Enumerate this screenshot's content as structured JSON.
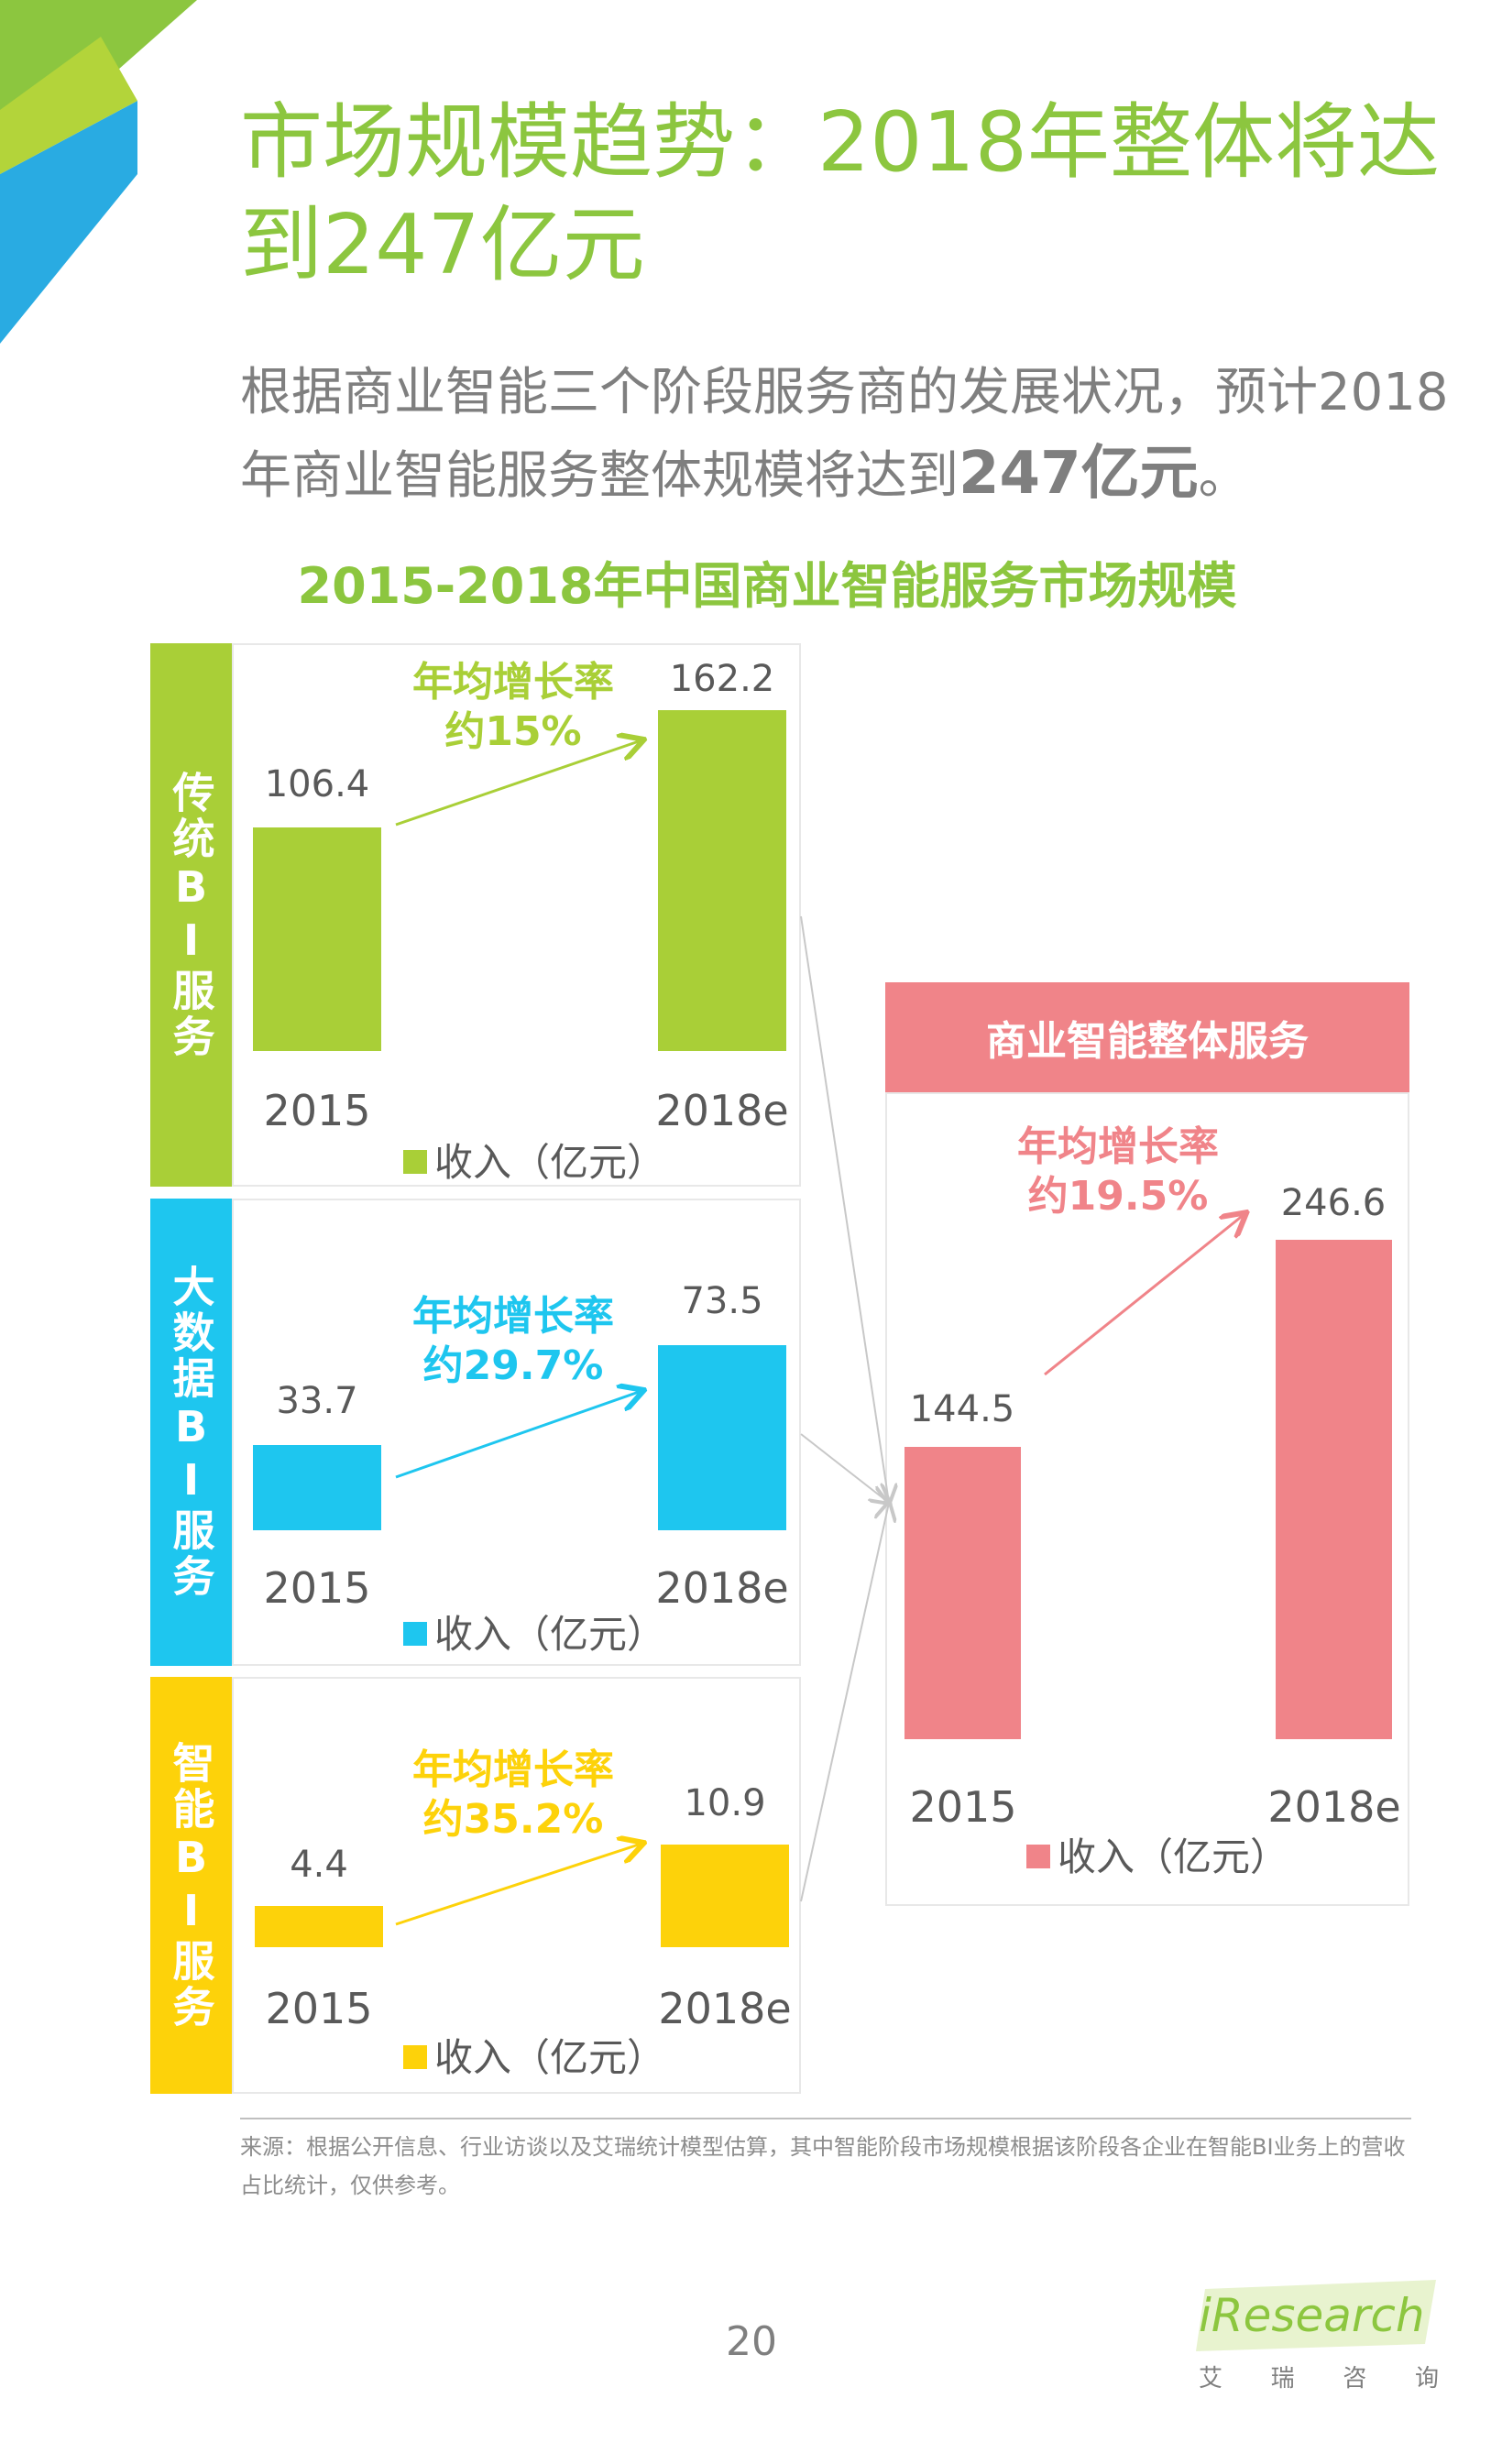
{
  "page": {
    "title": "市场规模趋势：2018年整体将达到247亿元",
    "subtitle_prefix": "根据商业智能三个阶段服务商的发展状况，预计2018年商业智能服务整体规模将达到",
    "subtitle_bold": "247亿元",
    "subtitle_suffix": "。",
    "chart_title": "2015-2018年中国商业智能服务市场规模",
    "source": "来源：根据公开信息、行业访谈以及艾瑞统计模型估算，其中智能阶段市场规模根据该阶段各企业在智能BI业务上的营收占比统计，仅供参考。",
    "page_number": "20",
    "logo": "iResearch",
    "logo_cn": [
      "艾",
      "瑞",
      "咨",
      "询"
    ]
  },
  "colors": {
    "green": "#a9cf37",
    "blue": "#1ec6ef",
    "yellow": "#fdd20a",
    "pink": "#f08489",
    "title_green": "#8cc63f"
  },
  "chart_data": [
    {
      "type": "bar",
      "label": "传统BI服务",
      "categories": [
        "2015",
        "2018e"
      ],
      "values": [
        106.4,
        162.2
      ],
      "value_labels": [
        "106.4",
        "162.2"
      ],
      "growth_line1": "年均增长率",
      "growth_line2": "约15%",
      "legend": "收入（亿元）"
    },
    {
      "type": "bar",
      "label": "大数据BI服务",
      "categories": [
        "2015",
        "2018e"
      ],
      "values": [
        33.7,
        73.5
      ],
      "value_labels": [
        "33.7",
        "73.5"
      ],
      "growth_line1": "年均增长率",
      "growth_line2": "约29.7%",
      "legend": "收入（亿元）"
    },
    {
      "type": "bar",
      "label": "智能BI服务",
      "categories": [
        "2015",
        "2018e"
      ],
      "values": [
        4.4,
        10.9
      ],
      "value_labels": [
        "4.4",
        "10.9"
      ],
      "growth_line1": "年均增长率",
      "growth_line2": "约35.2%",
      "legend": "收入（亿元）"
    },
    {
      "type": "bar",
      "label": "商业智能整体服务",
      "categories": [
        "2015",
        "2018e"
      ],
      "values": [
        144.5,
        246.6
      ],
      "value_labels": [
        "144.5",
        "246.6"
      ],
      "growth_line1": "年均增长率",
      "growth_line2": "约19.5%",
      "legend": "收入（亿元）"
    }
  ]
}
